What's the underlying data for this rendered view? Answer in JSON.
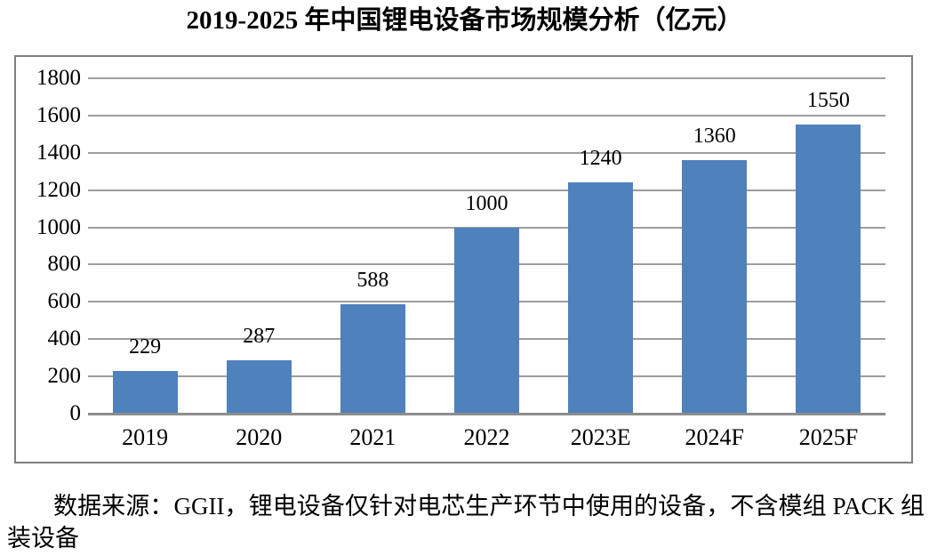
{
  "page": {
    "background_color": "#ffffff"
  },
  "chart_data": {
    "type": "bar",
    "title": "2019-2025 年中国锂电设备市场规模分析（亿元）",
    "categories": [
      "2019",
      "2020",
      "2021",
      "2022",
      "2023E",
      "2024F",
      "2025F"
    ],
    "values": [
      229,
      287,
      588,
      1000,
      1240,
      1360,
      1550
    ],
    "xlabel": "",
    "ylabel": "",
    "ylim": [
      0,
      1800
    ],
    "ytick_interval": 200,
    "ytick_labels": [
      "0",
      "200",
      "400",
      "600",
      "800",
      "1000",
      "1200",
      "1400",
      "1600",
      "1800"
    ],
    "data_labels_shown": true,
    "legend": "none",
    "grid": "horizontal",
    "bar_color": "#4f81bd",
    "gridline_color": "#9d9d9d",
    "axis_line_color": "#8c8c8c",
    "frame_border_color": "#7f7f7f",
    "text_color": "#000000"
  },
  "source_note": {
    "text": "数据来源：GGII，锂电设备仅针对电芯生产环节中使用的设备，不含模组 PACK 组装设备"
  }
}
